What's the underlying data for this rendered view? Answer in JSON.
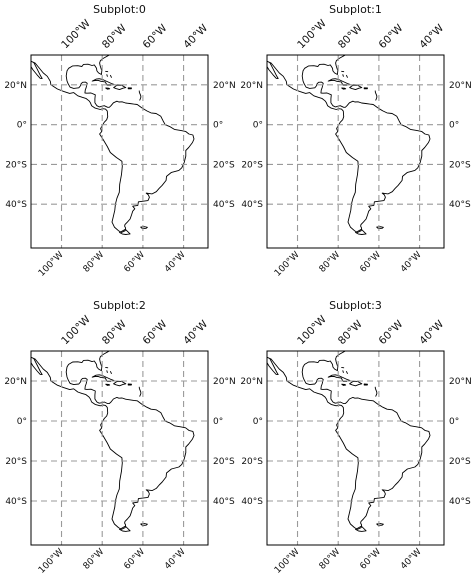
{
  "colors": {
    "top_label": "#1a1adb",
    "other_label": "#111111",
    "gridline": "#9a9a9a",
    "coastline": "#000000"
  },
  "gridline_style": "dashed",
  "subplots": [
    {
      "title": "Subplot:0",
      "extent": {
        "lon": [
          -115,
          -28
        ],
        "lat": [
          -62,
          35
        ]
      },
      "lon_ticks": [
        -100,
        -80,
        -60,
        -40
      ],
      "lat_ticks": [
        20,
        0,
        -20,
        -40
      ],
      "lon_labels_top": [
        "100°W",
        "80°W",
        "60°W",
        "40°W"
      ],
      "lon_labels_bottom": [
        "100°W",
        "80°W",
        "60°W",
        "40°W"
      ],
      "lat_labels_left": [
        "20°N",
        "0°",
        "20°S",
        "40°S"
      ],
      "lat_labels_right": [
        "20°N",
        "0°",
        "20°S",
        "40°S"
      ]
    },
    {
      "title": "Subplot:1",
      "extent": {
        "lon": [
          -115,
          -28
        ],
        "lat": [
          -62,
          35
        ]
      },
      "lon_ticks": [
        -100,
        -80,
        -60,
        -40
      ],
      "lat_ticks": [
        20,
        0,
        -20,
        -40
      ],
      "lon_labels_top": [
        "100°W",
        "80°W",
        "60°W",
        "40°W"
      ],
      "lon_labels_bottom": [
        "100°W",
        "80°W",
        "60°W",
        "40°W"
      ],
      "lat_labels_left": [
        "20°N",
        "0°",
        "20°S",
        "40°S"
      ],
      "lat_labels_right": [
        "20°N",
        "0°",
        "20°S",
        "40°S"
      ]
    },
    {
      "title": "Subplot:2",
      "extent": {
        "lon": [
          -115,
          -28
        ],
        "lat": [
          -62,
          35
        ]
      },
      "lon_ticks": [
        -100,
        -80,
        -60,
        -40
      ],
      "lat_ticks": [
        20,
        0,
        -20,
        -40
      ],
      "lon_labels_top": [
        "100°W",
        "80°W",
        "60°W",
        "40°W"
      ],
      "lon_labels_bottom": [
        "100°W",
        "80°W",
        "60°W",
        "40°W"
      ],
      "lat_labels_left": [
        "20°N",
        "0°",
        "20°S",
        "40°S"
      ],
      "lat_labels_right": [
        "20°N",
        "0°",
        "20°S",
        "40°S"
      ]
    },
    {
      "title": "Subplot:3",
      "extent": {
        "lon": [
          -115,
          -28
        ],
        "lat": [
          -62,
          35
        ]
      },
      "lon_ticks": [
        -100,
        -80,
        -60,
        -40
      ],
      "lat_ticks": [
        20,
        0,
        -20,
        -40
      ],
      "lon_labels_top": [
        "100°W",
        "80°W",
        "60°W",
        "40°W"
      ],
      "lon_labels_bottom": [
        "100°W",
        "80°W",
        "60°W",
        "40°W"
      ],
      "lat_labels_left": [
        "20°N",
        "0°",
        "20°S",
        "40°S"
      ],
      "lat_labels_right": [
        "20°N",
        "0°",
        "20°S",
        "40°S"
      ]
    }
  ]
}
